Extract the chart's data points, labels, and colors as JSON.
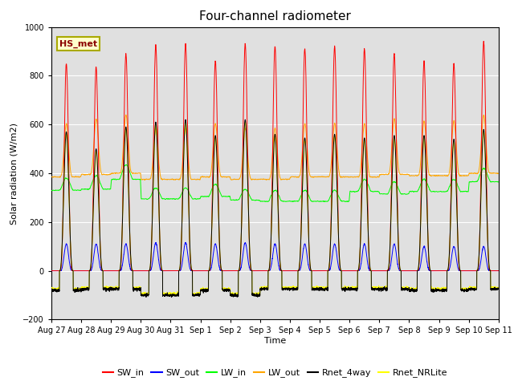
{
  "title": "Four-channel radiometer",
  "ylabel": "Solar radiation (W/m2)",
  "xlabel": "Time",
  "ylim": [
    -200,
    1000
  ],
  "yticks": [
    -200,
    0,
    200,
    400,
    600,
    800,
    1000
  ],
  "xtick_labels": [
    "Aug 27",
    "Aug 28",
    "Aug 29",
    "Aug 30",
    "Aug 31",
    "Sep 1",
    "Sep 2",
    "Sep 3",
    "Sep 4",
    "Sep 5",
    "Sep 6",
    "Sep 7",
    "Sep 8",
    "Sep 9",
    "Sep 10",
    "Sep 11"
  ],
  "legend_labels": [
    "SW_in",
    "SW_out",
    "LW_in",
    "LW_out",
    "Rnet_4way",
    "Rnet_NRLite"
  ],
  "annotation_text": "HS_met",
  "annotation_bg": "#ffffcc",
  "annotation_border": "#aaaa00",
  "bg_color": "#e0e0e0",
  "n_days": 15,
  "n_per_day": 288,
  "sw_in_peaks": [
    850,
    835,
    890,
    925,
    930,
    860,
    930,
    920,
    910,
    920,
    910,
    890,
    860,
    850,
    940
  ],
  "sw_out_peaks": [
    110,
    110,
    110,
    115,
    115,
    110,
    115,
    110,
    110,
    110,
    110,
    110,
    100,
    100,
    100
  ],
  "lw_in_night": [
    330,
    335,
    375,
    295,
    295,
    305,
    290,
    285,
    285,
    285,
    325,
    315,
    325,
    325,
    365
  ],
  "lw_in_day_add": [
    50,
    55,
    60,
    45,
    45,
    50,
    45,
    45,
    45,
    45,
    50,
    50,
    50,
    50,
    55
  ],
  "lw_out_night": [
    385,
    395,
    400,
    375,
    375,
    385,
    375,
    375,
    385,
    385,
    385,
    395,
    390,
    390,
    400
  ],
  "lw_out_day_peak_add": [
    220,
    230,
    240,
    210,
    210,
    220,
    210,
    210,
    220,
    220,
    220,
    230,
    225,
    225,
    240
  ],
  "rnet_night": [
    -80,
    -75,
    -75,
    -100,
    -100,
    -80,
    -100,
    -75,
    -75,
    -75,
    -75,
    -75,
    -80,
    -80,
    -75
  ],
  "rnet_nrlite_night": [
    -75,
    -70,
    -70,
    -95,
    -95,
    -75,
    -95,
    -70,
    -70,
    -70,
    -70,
    -70,
    -75,
    -75,
    -70
  ],
  "rnet_day_peak": [
    570,
    500,
    590,
    610,
    620,
    555,
    620,
    560,
    545,
    560,
    545,
    555,
    555,
    540,
    580
  ],
  "rnet_nrlite_day_peak": [
    560,
    490,
    580,
    600,
    610,
    545,
    610,
    550,
    535,
    550,
    535,
    545,
    545,
    530,
    570
  ]
}
